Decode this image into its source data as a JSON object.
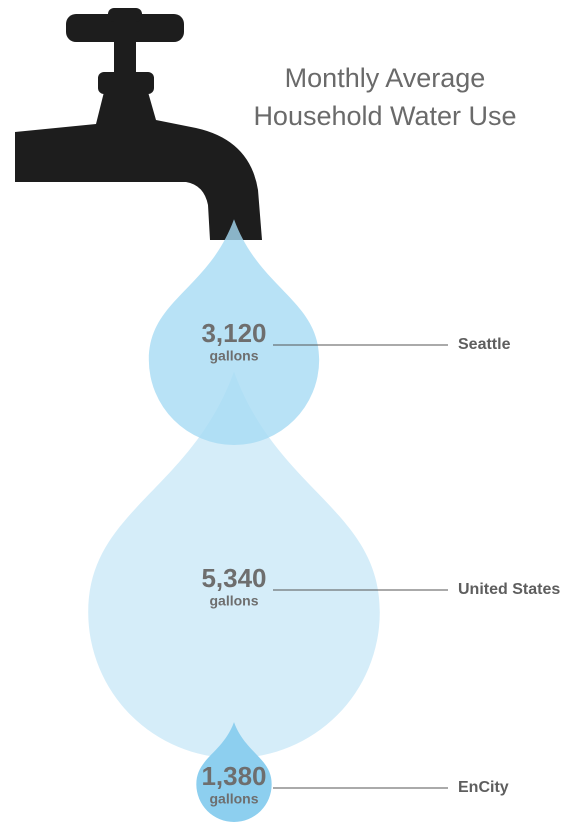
{
  "chart_data": {
    "type": "drop",
    "title": [
      "Monthly Average",
      "Household Water Use"
    ],
    "unit": "gallons",
    "categories": [
      "Seattle",
      "United States",
      "EnCity"
    ],
    "values": [
      3120,
      5340,
      1380
    ],
    "value_labels": [
      "3,120",
      "5,340",
      "1,380"
    ],
    "colors": [
      "#a6dbf4",
      "#d5edf9",
      "#8dcfef"
    ]
  }
}
